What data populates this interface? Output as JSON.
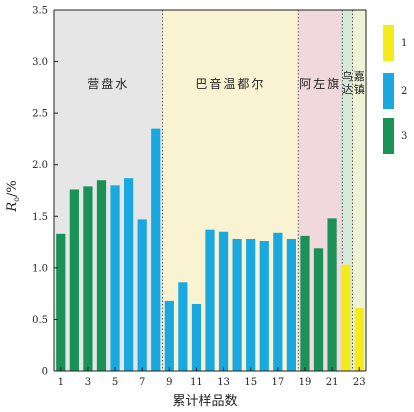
{
  "chart_data": {
    "type": "bar",
    "xlabel": "累计样品数",
    "ylabel_main": "R",
    "ylabel_sub": "o",
    "ylabel_suffix": "/%",
    "ylim": [
      0,
      3.5
    ],
    "yticks": [
      "0",
      "0.5",
      "1.0",
      "1.5",
      "2.0",
      "2.5",
      "3.0",
      "3.5"
    ],
    "xticks": [
      "1",
      "3",
      "5",
      "7",
      "9",
      "11",
      "13",
      "15",
      "17",
      "19",
      "21",
      "23"
    ],
    "xtick_values": [
      1,
      3,
      5,
      7,
      9,
      11,
      13,
      15,
      17,
      19,
      21,
      23
    ],
    "regions": [
      {
        "name": "营盘水",
        "from": 0.5,
        "to": 8.5,
        "color": "#e6e6e6"
      },
      {
        "name": "巴音温都尔",
        "from": 8.5,
        "to": 18.5,
        "color": "#faf3d2"
      },
      {
        "name": "阿左旗",
        "from": 18.5,
        "to": 21.75,
        "color": "#f0d8dc"
      },
      {
        "name": "乌达",
        "from": 21.75,
        "to": 22.5,
        "color": "#d4e9d8"
      },
      {
        "name": "嘉镇",
        "from": 22.5,
        "to": 23.5,
        "color": "#eff3d6"
      }
    ],
    "bars": [
      {
        "x": 1,
        "value": 1.33,
        "cls": 3
      },
      {
        "x": 2,
        "value": 1.76,
        "cls": 3
      },
      {
        "x": 3,
        "value": 1.79,
        "cls": 3
      },
      {
        "x": 4,
        "value": 1.85,
        "cls": 3
      },
      {
        "x": 5,
        "value": 1.8,
        "cls": 2
      },
      {
        "x": 6,
        "value": 1.87,
        "cls": 2
      },
      {
        "x": 7,
        "value": 1.47,
        "cls": 2
      },
      {
        "x": 8,
        "value": 2.35,
        "cls": 2
      },
      {
        "x": 9,
        "value": 0.68,
        "cls": 2
      },
      {
        "x": 10,
        "value": 0.86,
        "cls": 2
      },
      {
        "x": 11,
        "value": 0.65,
        "cls": 2
      },
      {
        "x": 12,
        "value": 1.37,
        "cls": 2
      },
      {
        "x": 13,
        "value": 1.35,
        "cls": 2
      },
      {
        "x": 14,
        "value": 1.28,
        "cls": 2
      },
      {
        "x": 15,
        "value": 1.28,
        "cls": 2
      },
      {
        "x": 16,
        "value": 1.26,
        "cls": 2
      },
      {
        "x": 17,
        "value": 1.34,
        "cls": 2
      },
      {
        "x": 18,
        "value": 1.28,
        "cls": 2
      },
      {
        "x": 19,
        "value": 1.31,
        "cls": 3
      },
      {
        "x": 20,
        "value": 1.19,
        "cls": 3
      },
      {
        "x": 21,
        "value": 1.48,
        "cls": 3
      },
      {
        "x": 22,
        "value": 1.03,
        "cls": 1
      },
      {
        "x": 23,
        "value": 0.61,
        "cls": 1
      }
    ],
    "legend": [
      {
        "label": "1",
        "color": "#f5ea1a"
      },
      {
        "label": "2",
        "color": "#1aa8e0"
      },
      {
        "label": "3",
        "color": "#1a9257"
      }
    ],
    "legend_placement": "right"
  }
}
